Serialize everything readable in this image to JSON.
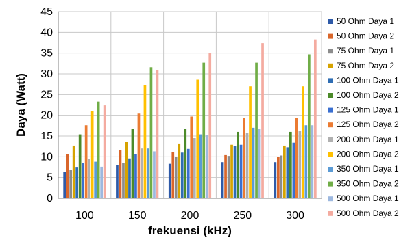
{
  "chart_data": {
    "type": "bar",
    "title": "",
    "xlabel": "frekuensi (kHz)",
    "ylabel": "Daya (Watt)",
    "ylim": [
      0,
      45
    ],
    "yticks": [
      0,
      5,
      10,
      15,
      20,
      25,
      30,
      35,
      40,
      45
    ],
    "grid": true,
    "legend_position": "right",
    "categories": [
      "100",
      "150",
      "200",
      "250",
      "300"
    ],
    "series": [
      {
        "name": "50 Ohm Daya 1",
        "color": "#2e5aa8",
        "values": [
          6.4,
          8.0,
          8.3,
          8.7,
          8.7
        ]
      },
      {
        "name": "50 Ohm Daya 2",
        "color": "#d9662b",
        "values": [
          10.6,
          11.7,
          11.1,
          10.4,
          10.0
        ]
      },
      {
        "name": "75 Ohm Daya 1",
        "color": "#8c8c8c",
        "values": [
          6.9,
          8.5,
          9.9,
          10.2,
          10.3
        ]
      },
      {
        "name": "75 Ohm Daya 2",
        "color": "#d6a300",
        "values": [
          12.7,
          13.6,
          13.2,
          12.9,
          12.7
        ]
      },
      {
        "name": "100 Ohm Daya 1",
        "color": "#2f6db3",
        "values": [
          7.4,
          9.6,
          11.0,
          12.6,
          12.3
        ]
      },
      {
        "name": "100 Ohm Daya 2",
        "color": "#4c8a2a",
        "values": [
          15.4,
          16.8,
          16.7,
          16.0,
          16.0
        ]
      },
      {
        "name": "125 Ohm Daya 1",
        "color": "#3a6fd0",
        "values": [
          8.5,
          10.7,
          11.9,
          12.9,
          13.4
        ]
      },
      {
        "name": "125 Ohm Daya 2",
        "color": "#eb7b32",
        "values": [
          17.6,
          20.4,
          19.7,
          19.3,
          19.4
        ]
      },
      {
        "name": "200 Ohm Daya 1",
        "color": "#b0b0b0",
        "values": [
          9.5,
          12.0,
          14.5,
          15.8,
          16.2
        ]
      },
      {
        "name": "200 Ohm Daya 2",
        "color": "#ffc000",
        "values": [
          21.0,
          27.2,
          28.6,
          27.0,
          27.0
        ]
      },
      {
        "name": "350 Ohm Daya 1",
        "color": "#5b9bd5",
        "values": [
          8.8,
          12.0,
          15.4,
          17.0,
          17.6
        ]
      },
      {
        "name": "350 Ohm Daya 2",
        "color": "#70ad47",
        "values": [
          23.3,
          31.6,
          32.7,
          32.7,
          34.7
        ]
      },
      {
        "name": "500 Ohm Daya 1",
        "color": "#9db8df",
        "values": [
          7.6,
          11.3,
          15.2,
          16.8,
          17.6
        ]
      },
      {
        "name": "500 Ohm Daya 2",
        "color": "#f4aba0",
        "values": [
          22.4,
          30.9,
          35.0,
          37.4,
          38.3
        ]
      }
    ]
  }
}
